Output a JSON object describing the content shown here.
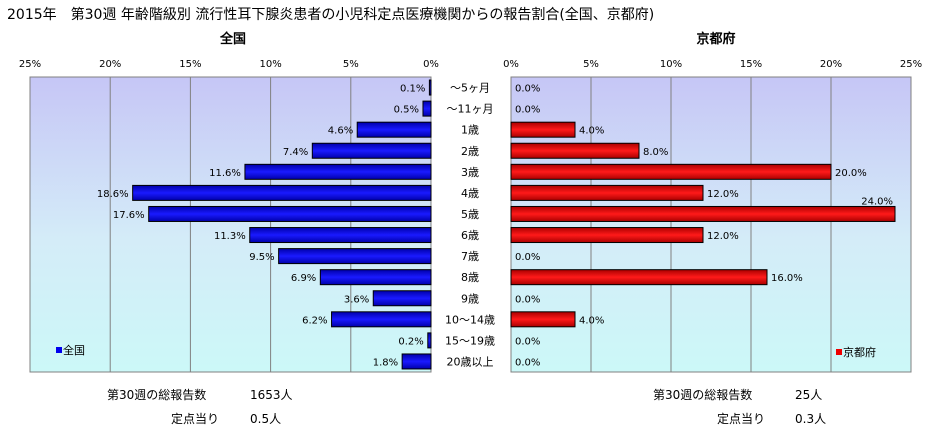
{
  "title": "2015年　第30週 年齢階級別 流行性耳下腺炎患者の小児科定点医療機関からの報告割合(全国、京都府)",
  "colors": {
    "national": "#0000ee",
    "kyoto": "#ee0000"
  },
  "chart_data": [
    {
      "type": "bar",
      "orientation": "horizontal",
      "direction": "reversed",
      "title": "全国",
      "legend": "全国",
      "legend_position": "bottom-left",
      "xlim": [
        0,
        25
      ],
      "ticks": [
        "25%",
        "20%",
        "15%",
        "10%",
        "5%",
        "0%"
      ],
      "categories": [
        "～5ヶ月",
        "～11ヶ月",
        "1歳",
        "2歳",
        "3歳",
        "4歳",
        "5歳",
        "6歳",
        "7歳",
        "8歳",
        "9歳",
        "10～14歳",
        "15～19歳",
        "20歳以上"
      ],
      "values": [
        0.1,
        0.5,
        4.6,
        7.4,
        11.6,
        18.6,
        17.6,
        11.3,
        9.5,
        6.9,
        3.6,
        6.2,
        0.2,
        1.8
      ],
      "labels": [
        "0.1%",
        "0.5%",
        "4.6%",
        "7.4%",
        "11.6%",
        "18.6%",
        "17.6%",
        "11.3%",
        "9.5%",
        "6.9%",
        "3.6%",
        "6.2%",
        "0.2%",
        "1.8%"
      ],
      "grid": true
    },
    {
      "type": "bar",
      "orientation": "horizontal",
      "title": "京都府",
      "legend": "京都府",
      "legend_position": "bottom-right",
      "xlim": [
        0,
        25
      ],
      "ticks": [
        "0%",
        "5%",
        "10%",
        "15%",
        "20%",
        "25%"
      ],
      "categories": [
        "～5ヶ月",
        "～11ヶ月",
        "1歳",
        "2歳",
        "3歳",
        "4歳",
        "5歳",
        "6歳",
        "7歳",
        "8歳",
        "9歳",
        "10～14歳",
        "15～19歳",
        "20歳以上"
      ],
      "values": [
        0.0,
        0.0,
        4.0,
        8.0,
        20.0,
        12.0,
        24.0,
        12.0,
        0.0,
        16.0,
        0.0,
        4.0,
        0.0,
        0.0
      ],
      "labels": [
        "0.0%",
        "0.0%",
        "4.0%",
        "8.0%",
        "20.0%",
        "12.0%",
        "24.0%",
        "12.0%",
        "0.0%",
        "16.0%",
        "0.0%",
        "4.0%",
        "0.0%",
        "0.0%"
      ],
      "grid": true
    }
  ],
  "footer": {
    "national": {
      "total_label": "第30週の総報告数",
      "total_value": "1653人",
      "per_site_label": "定点当り",
      "per_site_value": "0.5人"
    },
    "kyoto": {
      "total_label": "第30週の総報告数",
      "total_value": "25人",
      "per_site_label": "定点当り",
      "per_site_value": "0.3人"
    }
  }
}
